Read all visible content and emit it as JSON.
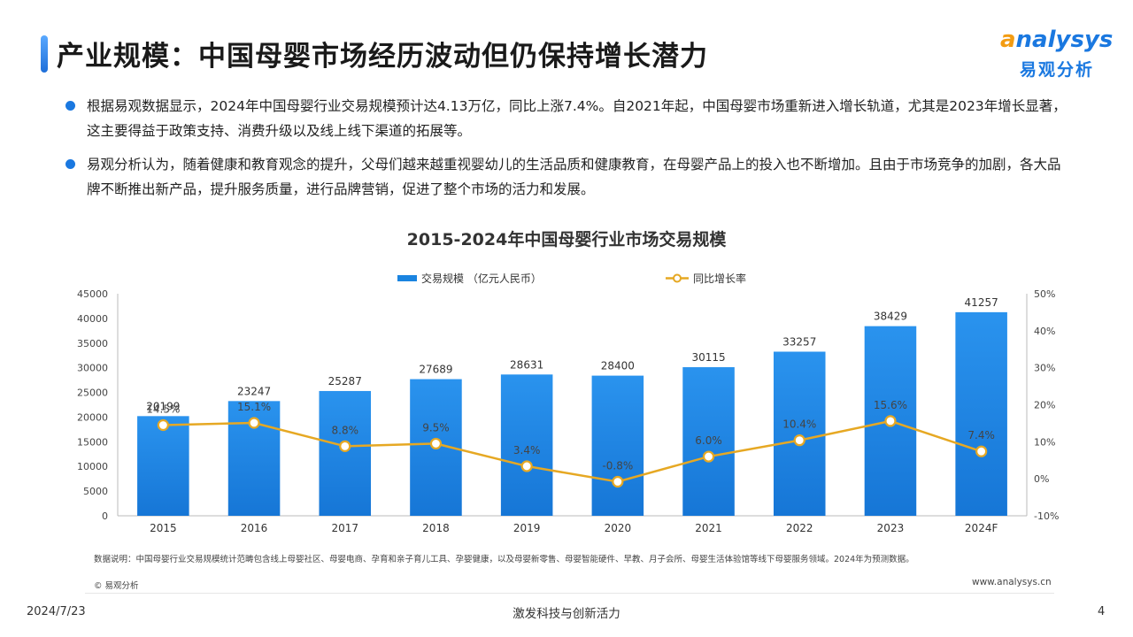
{
  "header": {
    "title": "产业规模：中国母婴市场经历波动但仍保持增长潜力",
    "logo_en_first": "a",
    "logo_en_rest": "nalysys",
    "logo_cn": "易观分析"
  },
  "bullets": [
    "根据易观数据显示，2024年中国母婴行业交易规模预计达4.13万亿，同比上涨7.4%。自2021年起，中国母婴市场重新进入增长轨道，尤其是2023年增长显著，这主要得益于政策支持、消费升级以及线上线下渠道的拓展等。",
    "易观分析认为，随着健康和教育观念的提升，父母们越来越重视婴幼儿的生活品质和健康教育，在母婴产品上的投入也不断增加。且由于市场竞争的加剧，各大品牌不断推出新产品，提升服务质量，进行品牌营销，促进了整个市场的活力和发展。"
  ],
  "chart_data": {
    "type": "bar",
    "title": "2015-2024年中国母婴行业市场交易规模",
    "categories": [
      "2015",
      "2016",
      "2017",
      "2018",
      "2019",
      "2020",
      "2021",
      "2022",
      "2023",
      "2024F"
    ],
    "series": [
      {
        "name": "交易规模 （亿元人民币）",
        "type": "bar",
        "axis": "left",
        "values": [
          20199,
          23247,
          25287,
          27689,
          28631,
          28400,
          30115,
          33257,
          38429,
          41257
        ],
        "labels": [
          "20199",
          "23247",
          "25287",
          "27689",
          "28631",
          "28400",
          "30115",
          "33257",
          "38429",
          "41257"
        ],
        "color": "#1a84e0"
      },
      {
        "name": "同比增长率",
        "type": "line",
        "axis": "right",
        "values": [
          14.5,
          15.1,
          8.8,
          9.5,
          3.4,
          -0.8,
          6.0,
          10.4,
          15.6,
          7.4
        ],
        "labels": [
          "14.5%",
          "15.1%",
          "8.8%",
          "9.5%",
          "3.4%",
          "-0.8%",
          "6.0%",
          "10.4%",
          "15.6%",
          "7.4%"
        ],
        "color": "#e6a823"
      }
    ],
    "y_left": {
      "range": [
        0,
        45000
      ],
      "ticks": [
        0,
        5000,
        10000,
        15000,
        20000,
        25000,
        30000,
        35000,
        40000,
        45000
      ],
      "tick_labels": [
        "0",
        "5000",
        "10000",
        "15000",
        "20000",
        "25000",
        "30000",
        "35000",
        "40000",
        "45000"
      ]
    },
    "y_right": {
      "range": [
        -10,
        50
      ],
      "ticks": [
        -10,
        0,
        10,
        20,
        30,
        40,
        50
      ],
      "tick_labels": [
        "-10%",
        "0%",
        "10%",
        "20%",
        "30%",
        "40%",
        "50%"
      ]
    },
    "legend": "top-center",
    "grid": false
  },
  "footer": {
    "note": "数据说明：中国母婴行业交易规模统计范畴包含线上母婴社区、母婴电商、孕育和亲子育儿工具、孕婴健康，以及母婴新零售、母婴智能硬件、早教、月子会所、母婴生活体验馆等线下母婴服务领域。2024年为预测数据。",
    "copyright": "© 易观分析",
    "website": "www.analysys.cn",
    "date": "2024/7/23",
    "slogan": "激发科技与创新活力",
    "page": "4"
  }
}
